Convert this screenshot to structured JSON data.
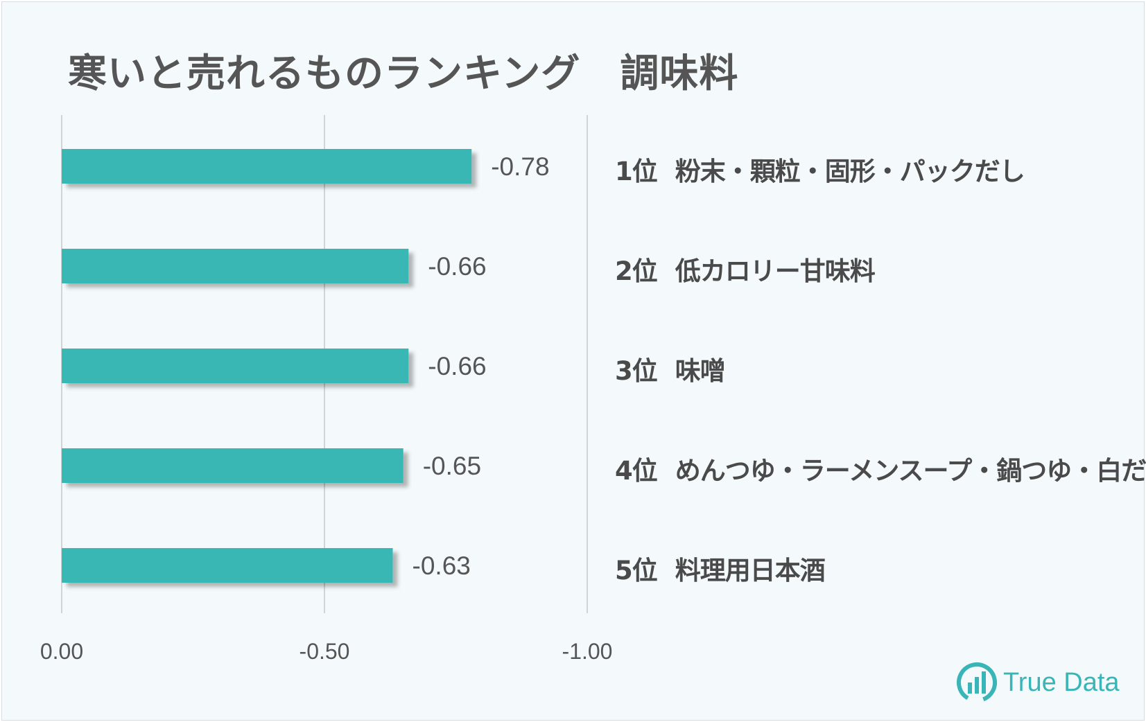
{
  "title": "寒いと売れるものランキング　調味料",
  "chart_data": {
    "type": "bar",
    "orientation": "horizontal",
    "title": "寒いと売れるものランキング　調味料",
    "categories": [
      "粉末・顆粒・固形・パックだし",
      "低カロリー甘味料",
      "味噌",
      "めんつゆ・ラーメンスープ・鍋つゆ・白だし",
      "料理用日本酒"
    ],
    "ranks": [
      "1位",
      "2位",
      "3位",
      "4位",
      "5位"
    ],
    "values": [
      -0.78,
      -0.66,
      -0.66,
      -0.65,
      -0.63
    ],
    "value_labels": [
      "-0.78",
      "-0.66",
      "-0.66",
      "-0.65",
      "-0.63"
    ],
    "xlim": [
      0,
      -1.0
    ],
    "xticks": [
      0,
      -0.5,
      -1.0
    ],
    "xtick_labels": [
      "0.00",
      "-0.50",
      "-1.00"
    ],
    "grid": true,
    "xlabel": "",
    "ylabel": ""
  },
  "colors": {
    "bar": "#38b7b5",
    "grid": "#d0d4d6",
    "text": "#4a4a4a",
    "background": "#f4fafb",
    "brand": "#3ab5b7"
  },
  "logo": {
    "text": "True Data",
    "icon": "bar-chart-circle-icon"
  }
}
